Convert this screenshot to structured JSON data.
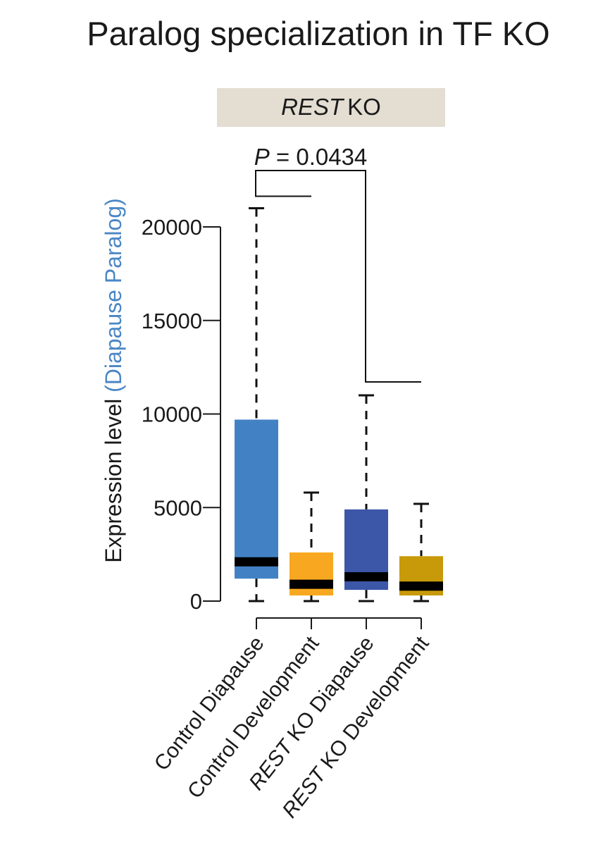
{
  "chart_data": {
    "type": "box",
    "title": "Paralog specialization in TF KO",
    "panel_label_italic": "REST",
    "panel_label_rest": "KO",
    "panel_color": "#e3ddd2",
    "ylabel_main": "Expression level ",
    "ylabel_colored": "(Diapause Paralog)",
    "ylabel_colored_color": "#4a86c5",
    "ylim": [
      0,
      22000
    ],
    "yticks": [
      0,
      5000,
      10000,
      15000,
      20000
    ],
    "ytick_labels": [
      "0",
      "5000",
      "10000",
      "15000",
      "20000"
    ],
    "grid": false,
    "categories": [
      {
        "italic": "",
        "rest": "Control Diapause"
      },
      {
        "italic": "",
        "rest": "Control Development"
      },
      {
        "italic": "REST",
        "rest": " KO Diapause"
      },
      {
        "italic": "REST",
        "rest": " KO Development"
      }
    ],
    "boxes": [
      {
        "min": 0,
        "q1": 1200,
        "median": 2100,
        "q3": 9700,
        "max": 21000,
        "color": "#4282c4"
      },
      {
        "min": 0,
        "q1": 300,
        "median": 900,
        "q3": 2600,
        "max": 5800,
        "color": "#f8a820"
      },
      {
        "min": 0,
        "q1": 600,
        "median": 1300,
        "q3": 4900,
        "max": 11000,
        "color": "#3c56a8"
      },
      {
        "min": 0,
        "q1": 300,
        "median": 800,
        "q3": 2400,
        "max": 5200,
        "color": "#c89a0a"
      }
    ],
    "significance": {
      "label_italic": "P",
      "label_rest": " = 0.0434",
      "group_a": [
        0,
        1
      ],
      "group_b": [
        2,
        3
      ]
    }
  }
}
